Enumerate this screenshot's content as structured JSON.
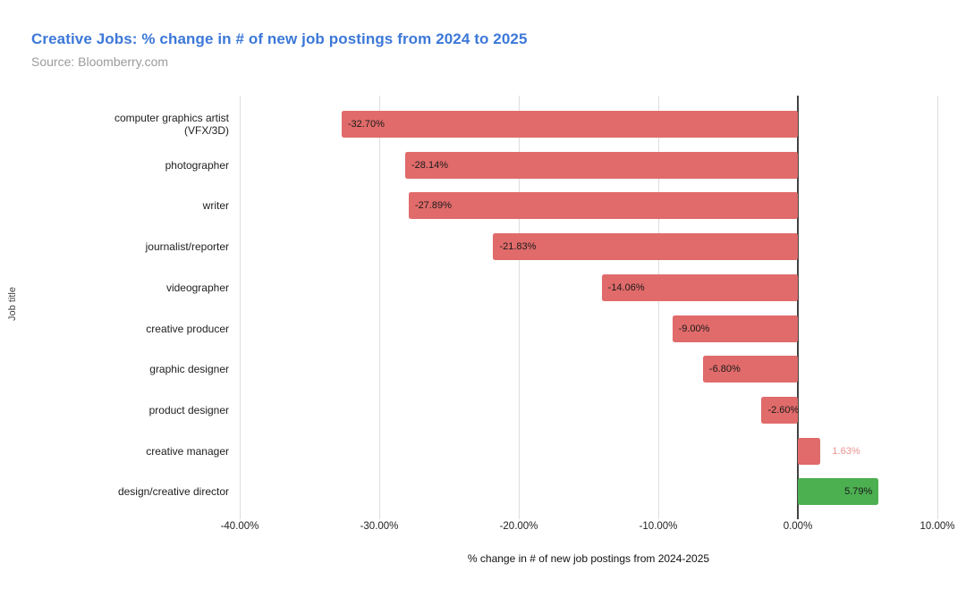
{
  "header": {
    "title": "Creative Jobs: % change in # of new job postings from 2024 to 2025",
    "subtitle": "Source: Bloomberry.com",
    "title_color": "#3c78d8",
    "subtitle_color": "#9b9b9b"
  },
  "chart_data": {
    "type": "bar",
    "orientation": "horizontal",
    "title": "Creative Jobs: % change in # of new job postings from 2024 to 2025",
    "subtitle": "Source: Bloomberry.com",
    "xlabel": "% change in # of new job postings from 2024-2025",
    "ylabel": "Job title",
    "xlim": [
      -40,
      10
    ],
    "grid": true,
    "legend": "none",
    "x_ticks": [
      {
        "value": -40,
        "label": "-40.00%"
      },
      {
        "value": -30,
        "label": "-30.00%"
      },
      {
        "value": -20,
        "label": "-20.00%"
      },
      {
        "value": -10,
        "label": "-10.00%"
      },
      {
        "value": 0,
        "label": "0.00%"
      },
      {
        "value": 10,
        "label": "10.00%"
      }
    ],
    "categories": [
      "computer graphics artist (VFX/3D)",
      "photographer",
      "writer",
      "journalist/reporter",
      "videographer",
      "creative producer",
      "graphic designer",
      "product designer",
      "creative manager",
      "design/creative director"
    ],
    "values": [
      -32.7,
      -28.14,
      -27.89,
      -21.83,
      -14.06,
      -9.0,
      -6.8,
      -2.6,
      1.63,
      5.79
    ],
    "bars": [
      {
        "category": "computer graphics artist (VFX/3D)",
        "label_lines": [
          "computer graphics artist",
          "(VFX/3D)"
        ],
        "value": -32.7,
        "value_label": "-32.70%",
        "color": "#e06b6a",
        "label_placement": "inside-start",
        "label_color": "#1a1a1a"
      },
      {
        "category": "photographer",
        "label_lines": [
          "photographer"
        ],
        "value": -28.14,
        "value_label": "-28.14%",
        "color": "#e06b6a",
        "label_placement": "inside-start",
        "label_color": "#1a1a1a"
      },
      {
        "category": "writer",
        "label_lines": [
          "writer"
        ],
        "value": -27.89,
        "value_label": "-27.89%",
        "color": "#e06b6a",
        "label_placement": "inside-start",
        "label_color": "#1a1a1a"
      },
      {
        "category": "journalist/reporter",
        "label_lines": [
          "journalist/reporter"
        ],
        "value": -21.83,
        "value_label": "-21.83%",
        "color": "#e06b6a",
        "label_placement": "inside-start",
        "label_color": "#1a1a1a"
      },
      {
        "category": "videographer",
        "label_lines": [
          "videographer"
        ],
        "value": -14.06,
        "value_label": "-14.06%",
        "color": "#e06b6a",
        "label_placement": "inside-start",
        "label_color": "#1a1a1a"
      },
      {
        "category": "creative producer",
        "label_lines": [
          "creative producer"
        ],
        "value": -9.0,
        "value_label": "-9.00%",
        "color": "#e06b6a",
        "label_placement": "inside-start",
        "label_color": "#1a1a1a"
      },
      {
        "category": "graphic designer",
        "label_lines": [
          "graphic designer"
        ],
        "value": -6.8,
        "value_label": "-6.80%",
        "color": "#e06b6a",
        "label_placement": "inside-start",
        "label_color": "#1a1a1a"
      },
      {
        "category": "product designer",
        "label_lines": [
          "product designer"
        ],
        "value": -2.6,
        "value_label": "-2.60%",
        "color": "#e06b6a",
        "label_placement": "inside-start",
        "label_color": "#1a1a1a"
      },
      {
        "category": "creative manager",
        "label_lines": [
          "creative manager"
        ],
        "value": 1.63,
        "value_label": "1.63%",
        "color": "#e06b6a",
        "label_placement": "outside-end",
        "label_color": "#ea9391"
      },
      {
        "category": "design/creative director",
        "label_lines": [
          "design/creative director"
        ],
        "value": 5.79,
        "value_label": "5.79%",
        "color": "#4caf50",
        "label_placement": "inside-end",
        "label_color": "#1a1a1a"
      }
    ],
    "colors": {
      "negative_bar": "#e06b6a",
      "positive_highlight_bar": "#4caf50",
      "zero_axis_line": "#424242",
      "gridline": "#dedede"
    }
  }
}
